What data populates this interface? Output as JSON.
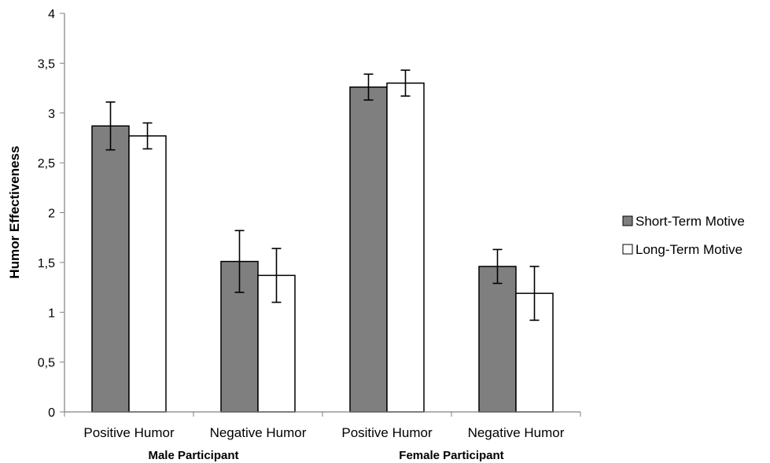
{
  "chart_data": {
    "type": "bar",
    "ylabel": "Humor Effectiveness",
    "ylim": [
      0,
      4
    ],
    "yticks": [
      0,
      0.5,
      1,
      1.5,
      2,
      2.5,
      3,
      3.5,
      4
    ],
    "ytick_labels": [
      "0",
      "0,5",
      "1",
      "1,5",
      "2",
      "2,5",
      "3",
      "3,5",
      "4"
    ],
    "categories": [
      "Positive Humor",
      "Negative Humor",
      "Positive Humor",
      "Negative Humor"
    ],
    "groups": [
      {
        "label": "Male Participant",
        "categories": [
          0,
          1
        ]
      },
      {
        "label": "Female Participant",
        "categories": [
          2,
          3
        ]
      }
    ],
    "series": [
      {
        "name": "Short-Term Motive",
        "color": "#7f7f7f",
        "values": [
          2.87,
          1.51,
          3.26,
          1.46
        ],
        "error": [
          0.24,
          0.31,
          0.13,
          0.17
        ]
      },
      {
        "name": "Long-Term Motive",
        "color": "#ffffff",
        "values": [
          2.77,
          1.37,
          3.3,
          1.19
        ],
        "error": [
          0.13,
          0.27,
          0.13,
          0.27
        ]
      }
    ],
    "legend_position": "right",
    "grid": false
  }
}
